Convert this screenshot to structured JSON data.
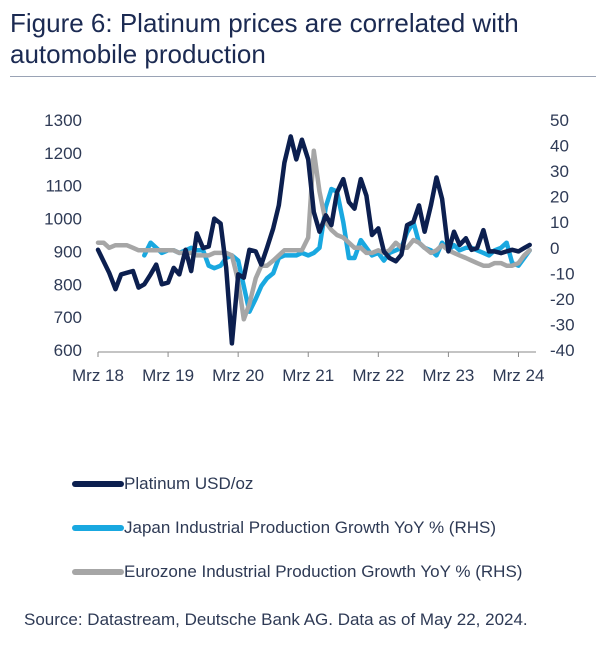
{
  "title": "Figure 6: Platinum prices are correlated with automobile production",
  "source": "Source: Datastream, Deutsche Bank AG. Data as of May 22, 2024.",
  "colors": {
    "platinum": "#0c1f4f",
    "japan": "#19a8e0",
    "eurozone": "#a6a6a6",
    "axis": "#8a8a8a"
  },
  "chart_data": {
    "type": "line",
    "x_ticks": [
      "Mrz 18",
      "Mrz 19",
      "Mrz 20",
      "Mrz 21",
      "Mrz 22",
      "Mrz 23",
      "Mrz 24"
    ],
    "x_range": [
      2018.17,
      2024.42
    ],
    "y_left": {
      "ticks": [
        "1300",
        "1200",
        "1100",
        "1000",
        "900",
        "800",
        "700",
        "600"
      ],
      "range": [
        600,
        1300
      ]
    },
    "y_right": {
      "ticks": [
        "50",
        "40",
        "30",
        "20",
        "10",
        "0",
        "-10",
        "-20",
        "-30",
        "-40"
      ],
      "range": [
        -40,
        50
      ]
    },
    "series": [
      {
        "name": "Platinum USD/oz",
        "axis": "left",
        "color_key": "platinum",
        "x": [
          2018.17,
          2018.25,
          2018.33,
          2018.42,
          2018.5,
          2018.58,
          2018.67,
          2018.75,
          2018.83,
          2018.92,
          2019.0,
          2019.08,
          2019.17,
          2019.25,
          2019.33,
          2019.42,
          2019.5,
          2019.58,
          2019.67,
          2019.75,
          2019.83,
          2019.92,
          2020.0,
          2020.08,
          2020.17,
          2020.25,
          2020.33,
          2020.42,
          2020.5,
          2020.58,
          2020.67,
          2020.75,
          2020.83,
          2020.92,
          2021.0,
          2021.08,
          2021.17,
          2021.25,
          2021.33,
          2021.42,
          2021.5,
          2021.58,
          2021.67,
          2021.75,
          2021.83,
          2021.92,
          2022.0,
          2022.08,
          2022.17,
          2022.25,
          2022.33,
          2022.42,
          2022.5,
          2022.58,
          2022.67,
          2022.75,
          2022.83,
          2022.92,
          2023.0,
          2023.08,
          2023.17,
          2023.25,
          2023.33,
          2023.42,
          2023.5,
          2023.58,
          2023.67,
          2023.75,
          2023.83,
          2023.92,
          2024.0,
          2024.08,
          2024.17,
          2024.25,
          2024.33
        ],
        "y": [
          905,
          870,
          835,
          785,
          830,
          835,
          840,
          790,
          800,
          830,
          860,
          800,
          805,
          850,
          830,
          905,
          840,
          955,
          910,
          915,
          1000,
          985,
          850,
          620,
          830,
          820,
          905,
          900,
          860,
          910,
          970,
          1040,
          1170,
          1250,
          1180,
          1240,
          1180,
          1020,
          960,
          1010,
          980,
          1080,
          1120,
          1050,
          1030,
          1120,
          1070,
          950,
          970,
          900,
          880,
          870,
          890,
          980,
          990,
          1040,
          960,
          1040,
          1125,
          1060,
          900,
          960,
          920,
          940,
          905,
          910,
          965,
          900,
          900,
          895,
          900,
          905,
          900,
          910,
          920
        ]
      },
      {
        "name": "Japan Industrial Production Growth YoY % (RHS)",
        "axis": "right",
        "color_key": "japan",
        "x": [
          2018.83,
          2018.92,
          2019.0,
          2019.08,
          2019.17,
          2019.25,
          2019.33,
          2019.42,
          2019.5,
          2019.58,
          2019.67,
          2019.75,
          2019.83,
          2019.92,
          2020.0,
          2020.08,
          2020.17,
          2020.25,
          2020.33,
          2020.42,
          2020.5,
          2020.58,
          2020.67,
          2020.75,
          2020.83,
          2020.92,
          2021.0,
          2021.08,
          2021.17,
          2021.25,
          2021.33,
          2021.42,
          2021.5,
          2021.58,
          2021.67,
          2021.75,
          2021.83,
          2021.92,
          2022.0,
          2022.08,
          2022.17,
          2022.25,
          2022.33,
          2022.42,
          2022.5,
          2022.58,
          2022.67,
          2022.75,
          2022.83,
          2022.92,
          2023.0,
          2023.08,
          2023.17,
          2023.25,
          2023.33,
          2023.42,
          2023.5,
          2023.58,
          2023.67,
          2023.75,
          2023.83,
          2023.92,
          2024.0,
          2024.08,
          2024.17,
          2024.25,
          2024.33
        ],
        "y": [
          -3,
          2,
          0,
          -2,
          -1,
          -1,
          -2,
          -1,
          0,
          -1,
          -1,
          -7,
          -8,
          -7,
          -4,
          -3,
          -5,
          -15,
          -25,
          -20,
          -15,
          -12,
          -10,
          -4,
          -3,
          -3,
          -3,
          -2,
          -3,
          -2,
          0,
          16,
          23,
          22,
          10,
          -4,
          -4,
          3,
          0,
          -3,
          -2,
          -5,
          -2,
          -1,
          0,
          6,
          10,
          2,
          0,
          -1,
          -3,
          2,
          -1,
          1,
          -1,
          0,
          0,
          -1,
          -2,
          -3,
          -1,
          0,
          2,
          -6,
          -7,
          -4,
          -1
        ]
      },
      {
        "name": "Eurozone Industrial Production Growth YoY % (RHS)",
        "axis": "right",
        "color_key": "eurozone",
        "x": [
          2018.17,
          2018.25,
          2018.33,
          2018.42,
          2018.5,
          2018.58,
          2018.67,
          2018.75,
          2018.83,
          2018.92,
          2019.0,
          2019.08,
          2019.17,
          2019.25,
          2019.33,
          2019.42,
          2019.5,
          2019.58,
          2019.67,
          2019.75,
          2019.83,
          2019.92,
          2020.0,
          2020.08,
          2020.17,
          2020.25,
          2020.33,
          2020.42,
          2020.5,
          2020.58,
          2020.67,
          2020.75,
          2020.83,
          2020.92,
          2021.0,
          2021.08,
          2021.17,
          2021.25,
          2021.33,
          2021.42,
          2021.5,
          2021.58,
          2021.67,
          2021.75,
          2021.83,
          2021.92,
          2022.0,
          2022.08,
          2022.17,
          2022.25,
          2022.33,
          2022.42,
          2022.5,
          2022.58,
          2022.67,
          2022.75,
          2022.83,
          2022.92,
          2023.0,
          2023.08,
          2023.17,
          2023.25,
          2023.33,
          2023.42,
          2023.5,
          2023.58,
          2023.67,
          2023.75,
          2023.83,
          2023.92,
          2024.0,
          2024.08,
          2024.17,
          2024.25,
          2024.33
        ],
        "y": [
          2,
          2,
          0,
          1,
          1,
          1,
          0,
          -1,
          -1,
          -1,
          -1,
          -1,
          -1,
          -1,
          -2,
          -2,
          -2,
          -3,
          -3,
          -3,
          -2,
          -2,
          -2,
          -3,
          -13,
          -28,
          -22,
          -12,
          -7,
          -7,
          -5,
          -3,
          -1,
          -1,
          -1,
          -1,
          4,
          38,
          22,
          10,
          7,
          5,
          4,
          2,
          0,
          0,
          -2,
          -2,
          -1,
          -2,
          -1,
          2,
          0,
          0,
          3,
          2,
          0,
          -2,
          -1,
          1,
          -1,
          -2,
          -3,
          -4,
          -5,
          -6,
          -7,
          -7,
          -6,
          -6,
          -7,
          -7,
          -6,
          -3,
          -1
        ]
      }
    ]
  }
}
